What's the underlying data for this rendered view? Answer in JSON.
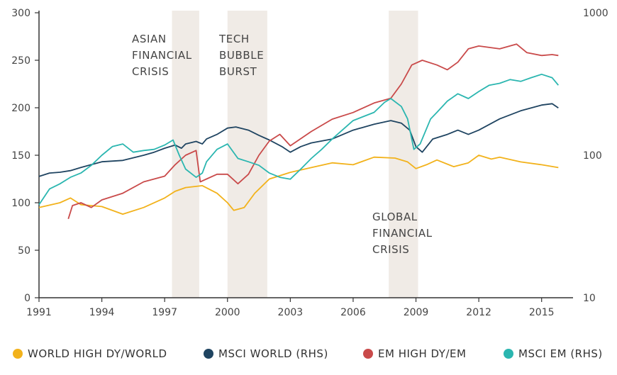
{
  "chart_data": {
    "type": "line",
    "x_ticks": [
      "1991",
      "1994",
      "1997",
      "2000",
      "2003",
      "2006",
      "2009",
      "2012",
      "2015"
    ],
    "xlim": [
      1991,
      2016.5
    ],
    "y_left": {
      "ticks": [
        "0",
        "50",
        "100",
        "150",
        "200",
        "250",
        "300"
      ],
      "ylim": [
        0,
        300
      ]
    },
    "y_right": {
      "ticks": [
        "10",
        "100",
        "1000"
      ],
      "ylim": [
        10,
        1000
      ],
      "scale": "log"
    },
    "shaded_periods": [
      {
        "name": "ASIAN FINANCIAL CRISIS",
        "start": 1997.35,
        "end": 1998.65,
        "label_lines": [
          "ASIAN",
          "FINANCIAL",
          "CRISIS"
        ]
      },
      {
        "name": "TECH BUBBLE BURST",
        "start": 2000.0,
        "end": 2001.9,
        "label_lines": [
          "TECH",
          "BUBBLE",
          "BURST"
        ]
      },
      {
        "name": "GLOBAL FINANCIAL CRISIS",
        "start": 2007.7,
        "end": 2009.1,
        "label_lines": [
          "GLOBAL",
          "FINANCIAL",
          "CRISIS"
        ]
      }
    ],
    "series": [
      {
        "name": "WORLD HIGH DY/WORLD",
        "axis": "left",
        "color": "#f2b21b",
        "points": [
          [
            1991,
            95
          ],
          [
            1992,
            100
          ],
          [
            1992.5,
            105
          ],
          [
            1993,
            98
          ],
          [
            1994,
            96
          ],
          [
            1995,
            88
          ],
          [
            1996,
            95
          ],
          [
            1997,
            105
          ],
          [
            1997.5,
            112
          ],
          [
            1998,
            116
          ],
          [
            1998.8,
            118
          ],
          [
            1999.5,
            110
          ],
          [
            2000,
            100
          ],
          [
            2000.3,
            92
          ],
          [
            2000.8,
            95
          ],
          [
            2001.3,
            110
          ],
          [
            2002,
            125
          ],
          [
            2003,
            132
          ],
          [
            2004,
            137
          ],
          [
            2005,
            142
          ],
          [
            2006,
            140
          ],
          [
            2007,
            148
          ],
          [
            2008,
            147
          ],
          [
            2008.6,
            143
          ],
          [
            2009,
            136
          ],
          [
            2009.5,
            140
          ],
          [
            2010,
            145
          ],
          [
            2010.8,
            138
          ],
          [
            2011.5,
            142
          ],
          [
            2012,
            150
          ],
          [
            2012.6,
            146
          ],
          [
            2013,
            148
          ],
          [
            2014,
            143
          ],
          [
            2015,
            140
          ],
          [
            2015.8,
            137
          ]
        ]
      },
      {
        "name": "MSCI WORLD (RHS)",
        "axis": "right",
        "color": "#1f4461",
        "points": [
          [
            1991,
            71
          ],
          [
            1991.5,
            75
          ],
          [
            1992,
            76
          ],
          [
            1992.5,
            78
          ],
          [
            1993,
            82
          ],
          [
            1993.5,
            86
          ],
          [
            1994,
            90
          ],
          [
            1995,
            92
          ],
          [
            1996,
            100
          ],
          [
            1996.5,
            105
          ],
          [
            1997,
            112
          ],
          [
            1997.5,
            118
          ],
          [
            1997.8,
            112
          ],
          [
            1998,
            120
          ],
          [
            1998.5,
            125
          ],
          [
            1998.8,
            120
          ],
          [
            1999,
            130
          ],
          [
            1999.5,
            140
          ],
          [
            2000,
            155
          ],
          [
            2000.4,
            158
          ],
          [
            2001,
            150
          ],
          [
            2001.5,
            138
          ],
          [
            2002,
            128
          ],
          [
            2002.6,
            115
          ],
          [
            2003,
            105
          ],
          [
            2003.5,
            115
          ],
          [
            2004,
            122
          ],
          [
            2005,
            130
          ],
          [
            2006,
            150
          ],
          [
            2007,
            165
          ],
          [
            2007.8,
            175
          ],
          [
            2008.3,
            168
          ],
          [
            2008.7,
            150
          ],
          [
            2009,
            115
          ],
          [
            2009.3,
            105
          ],
          [
            2009.8,
            130
          ],
          [
            2010.5,
            140
          ],
          [
            2011,
            150
          ],
          [
            2011.5,
            140
          ],
          [
            2012,
            150
          ],
          [
            2013,
            180
          ],
          [
            2014,
            205
          ],
          [
            2015,
            225
          ],
          [
            2015.5,
            230
          ],
          [
            2015.8,
            215
          ]
        ]
      },
      {
        "name": "EM HIGH DY/EM",
        "axis": "left",
        "color": "#c94a4a",
        "points": [
          [
            1992.4,
            83
          ],
          [
            1992.6,
            97
          ],
          [
            1993,
            100
          ],
          [
            1993.5,
            95
          ],
          [
            1994,
            103
          ],
          [
            1995,
            110
          ],
          [
            1996,
            122
          ],
          [
            1997,
            128
          ],
          [
            1997.5,
            140
          ],
          [
            1998,
            150
          ],
          [
            1998.5,
            155
          ],
          [
            1998.7,
            122
          ],
          [
            1999,
            125
          ],
          [
            1999.5,
            130
          ],
          [
            2000,
            130
          ],
          [
            2000.5,
            120
          ],
          [
            2001,
            130
          ],
          [
            2001.5,
            150
          ],
          [
            2002,
            165
          ],
          [
            2002.5,
            172
          ],
          [
            2003,
            160
          ],
          [
            2004,
            175
          ],
          [
            2005,
            188
          ],
          [
            2006,
            195
          ],
          [
            2007,
            205
          ],
          [
            2007.8,
            210
          ],
          [
            2008.3,
            225
          ],
          [
            2008.8,
            245
          ],
          [
            2009.3,
            250
          ],
          [
            2010,
            245
          ],
          [
            2010.5,
            240
          ],
          [
            2011,
            248
          ],
          [
            2011.5,
            262
          ],
          [
            2012,
            265
          ],
          [
            2013,
            262
          ],
          [
            2013.8,
            267
          ],
          [
            2014.3,
            258
          ],
          [
            2015,
            255
          ],
          [
            2015.5,
            256
          ],
          [
            2015.8,
            255
          ]
        ]
      },
      {
        "name": "MSCI EM (RHS)",
        "axis": "right",
        "color": "#2bb6b0",
        "points": [
          [
            1991,
            45
          ],
          [
            1991.5,
            58
          ],
          [
            1992,
            63
          ],
          [
            1992.5,
            70
          ],
          [
            1993,
            75
          ],
          [
            1993.5,
            85
          ],
          [
            1994,
            100
          ],
          [
            1994.5,
            115
          ],
          [
            1995,
            120
          ],
          [
            1995.5,
            105
          ],
          [
            1996,
            108
          ],
          [
            1996.5,
            110
          ],
          [
            1997,
            118
          ],
          [
            1997.4,
            128
          ],
          [
            1997.7,
            100
          ],
          [
            1998,
            80
          ],
          [
            1998.5,
            70
          ],
          [
            1998.8,
            75
          ],
          [
            1999,
            90
          ],
          [
            1999.5,
            110
          ],
          [
            2000,
            120
          ],
          [
            2000.5,
            95
          ],
          [
            2001,
            90
          ],
          [
            2001.5,
            85
          ],
          [
            2002,
            75
          ],
          [
            2002.5,
            70
          ],
          [
            2003,
            68
          ],
          [
            2003.5,
            80
          ],
          [
            2004,
            95
          ],
          [
            2004.5,
            110
          ],
          [
            2005,
            130
          ],
          [
            2006,
            175
          ],
          [
            2007,
            200
          ],
          [
            2007.5,
            235
          ],
          [
            2007.8,
            250
          ],
          [
            2008.3,
            220
          ],
          [
            2008.6,
            180
          ],
          [
            2008.9,
            110
          ],
          [
            2009.2,
            120
          ],
          [
            2009.7,
            180
          ],
          [
            2010,
            200
          ],
          [
            2010.5,
            240
          ],
          [
            2011,
            270
          ],
          [
            2011.5,
            250
          ],
          [
            2012,
            280
          ],
          [
            2012.5,
            310
          ],
          [
            2013,
            320
          ],
          [
            2013.5,
            340
          ],
          [
            2014,
            330
          ],
          [
            2014.5,
            350
          ],
          [
            2015,
            370
          ],
          [
            2015.5,
            350
          ],
          [
            2015.8,
            310
          ]
        ]
      }
    ]
  }
}
